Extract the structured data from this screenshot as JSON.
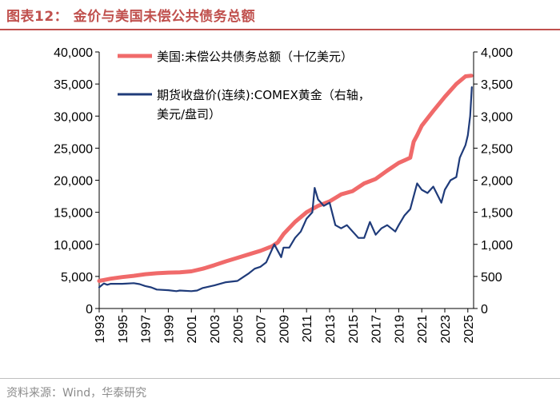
{
  "title": "图表12：   金价与美国未偿公共债务总额",
  "source": "资料来源：Wind，华泰研究",
  "colors": {
    "debt": "#f06a6a",
    "gold": "#1f3b7a",
    "title": "#c0504d"
  },
  "chart_data": {
    "type": "line",
    "title": "金价与美国未偿公共债务总额",
    "x_range": [
      1993,
      2025.5
    ],
    "x_ticks": [
      "1993",
      "1995",
      "1997",
      "1999",
      "2001",
      "2003",
      "2005",
      "2007",
      "2009",
      "2011",
      "2013",
      "2015",
      "2017",
      "2019",
      "2021",
      "2023",
      "2025"
    ],
    "left_axis": {
      "range": [
        0,
        40000
      ],
      "ticks": [
        "0",
        "5,000",
        "10,000",
        "15,000",
        "20,000",
        "25,000",
        "30,000",
        "35,000",
        "40,000"
      ]
    },
    "right_axis": {
      "range": [
        0,
        4000
      ],
      "ticks": [
        "0",
        "500",
        "1,000",
        "1,500",
        "2,000",
        "2,500",
        "3,000",
        "3,500",
        "4,000"
      ]
    },
    "series": [
      {
        "name": "美国:未偿公共债务总额（十亿美元）",
        "axis": "left",
        "x": [
          1993,
          1994,
          1995,
          1996,
          1997,
          1998,
          1999,
          2000,
          2001,
          2002,
          2003,
          2004,
          2005,
          2006,
          2007,
          2008,
          2008.5,
          2009,
          2010,
          2011,
          2012,
          2013,
          2014,
          2015,
          2016,
          2017,
          2018,
          2019,
          2020,
          2020.3,
          2020.6,
          2021,
          2022,
          2023,
          2024,
          2024.8,
          2025.3
        ],
        "values": [
          4300,
          4650,
          4900,
          5100,
          5350,
          5500,
          5600,
          5650,
          5800,
          6200,
          6750,
          7350,
          7900,
          8450,
          9000,
          9700,
          10300,
          11600,
          13500,
          15000,
          16000,
          16700,
          17800,
          18300,
          19500,
          20200,
          21500,
          22700,
          23500,
          26000,
          27000,
          28500,
          30800,
          33000,
          35000,
          36200,
          36300
        ]
      },
      {
        "name": "期货收盘价(连续):COMEX黄金（右轴，美元/盘司）",
        "axis": "right",
        "x": [
          1993,
          1993.4,
          1993.7,
          1994,
          1995,
          1996,
          1996.5,
          1997,
          1997.5,
          1998,
          1999,
          1999.7,
          2000,
          2001,
          2001.5,
          2002,
          2003,
          2004,
          2005,
          2005.5,
          2006,
          2006.5,
          2007,
          2007.5,
          2008,
          2008.2,
          2008.8,
          2009,
          2009.5,
          2010,
          2010.5,
          2011,
          2011.5,
          2011.7,
          2012,
          2012.5,
          2013,
          2013.5,
          2014,
          2014.5,
          2015,
          2015.5,
          2016,
          2016.5,
          2017,
          2017.5,
          2018,
          2018.7,
          2019,
          2019.5,
          2020,
          2020.6,
          2021,
          2021.5,
          2022,
          2022.7,
          2023,
          2023.5,
          2024,
          2024.3,
          2024.8,
          2025,
          2025.2,
          2025.35
        ],
        "values": [
          330,
          390,
          370,
          385,
          385,
          395,
          380,
          350,
          330,
          295,
          285,
          270,
          280,
          270,
          280,
          320,
          360,
          410,
          430,
          490,
          550,
          620,
          650,
          720,
          920,
          1000,
          800,
          950,
          950,
          1100,
          1200,
          1400,
          1500,
          1880,
          1700,
          1600,
          1650,
          1300,
          1250,
          1300,
          1200,
          1100,
          1100,
          1350,
          1150,
          1250,
          1300,
          1200,
          1300,
          1450,
          1550,
          1950,
          1850,
          1800,
          1900,
          1650,
          1850,
          2000,
          2050,
          2350,
          2550,
          2700,
          3000,
          3450
        ]
      }
    ],
    "legend": [
      "美国:未偿公共债务总额（十亿美元）",
      "期货收盘价(连续):COMEX黄金（右轴，",
      "美元/盘司）"
    ],
    "legend_position": "top-left"
  }
}
